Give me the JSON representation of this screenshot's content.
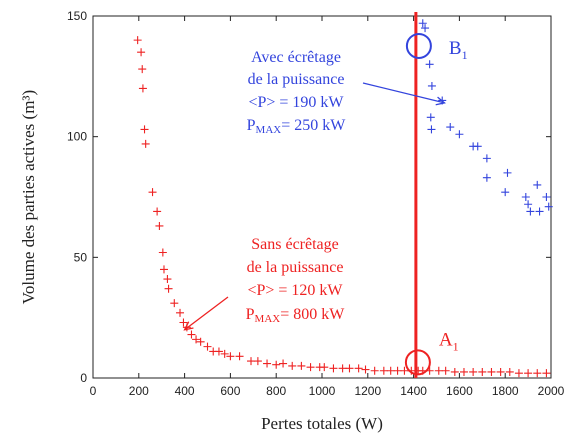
{
  "chart_data": {
    "type": "scatter",
    "xlabel": "Pertes totales (W)",
    "ylabel": "Volume des parties actives (m³)",
    "xlim": [
      0,
      2000
    ],
    "ylim": [
      0,
      150
    ],
    "x_ticks": [
      "0",
      "200",
      "400",
      "600",
      "800",
      "1000",
      "1200",
      "1400",
      "1600",
      "1800",
      "2000"
    ],
    "y_ticks": [
      "0",
      "50",
      "100",
      "150"
    ],
    "colors": {
      "red": "#ee2222",
      "blue": "#3344dd"
    },
    "marker": "+",
    "series": [
      {
        "color": "red",
        "points": [
          [
            195,
            140
          ],
          [
            210,
            135
          ],
          [
            215,
            128
          ],
          [
            218,
            120
          ],
          [
            225,
            103
          ],
          [
            230,
            97
          ],
          [
            260,
            77
          ],
          [
            280,
            69
          ],
          [
            290,
            63
          ],
          [
            305,
            52
          ],
          [
            310,
            45
          ],
          [
            325,
            41
          ],
          [
            330,
            37
          ],
          [
            355,
            31
          ],
          [
            380,
            27
          ],
          [
            395,
            23
          ],
          [
            410,
            21
          ],
          [
            430,
            18
          ],
          [
            450,
            16
          ],
          [
            470,
            15
          ],
          [
            500,
            13
          ],
          [
            525,
            11
          ],
          [
            550,
            11
          ],
          [
            575,
            10
          ],
          [
            600,
            9
          ],
          [
            640,
            9
          ],
          [
            690,
            7
          ],
          [
            720,
            7
          ],
          [
            760,
            6
          ],
          [
            800,
            5.5
          ],
          [
            830,
            6
          ],
          [
            870,
            5
          ],
          [
            910,
            5
          ],
          [
            950,
            4.5
          ],
          [
            990,
            4.5
          ],
          [
            1010,
            4.5
          ],
          [
            1050,
            4
          ],
          [
            1090,
            4
          ],
          [
            1120,
            4
          ],
          [
            1160,
            4
          ],
          [
            1190,
            3.5
          ],
          [
            1230,
            3
          ],
          [
            1270,
            3
          ],
          [
            1300,
            3
          ],
          [
            1330,
            3
          ],
          [
            1360,
            3
          ],
          [
            1390,
            3
          ],
          [
            1420,
            3
          ],
          [
            1440,
            3
          ],
          [
            1470,
            3
          ],
          [
            1510,
            3
          ],
          [
            1540,
            3
          ],
          [
            1580,
            2.5
          ],
          [
            1620,
            2.5
          ],
          [
            1660,
            2.5
          ],
          [
            1700,
            2.5
          ],
          [
            1740,
            2.5
          ],
          [
            1780,
            2.5
          ],
          [
            1820,
            2.5
          ],
          [
            1860,
            2
          ],
          [
            1900,
            2
          ],
          [
            1940,
            2
          ],
          [
            1980,
            2
          ]
        ]
      },
      {
        "color": "blue",
        "points": [
          [
            1440,
            147
          ],
          [
            1450,
            145
          ],
          [
            1470,
            130
          ],
          [
            1480,
            121
          ],
          [
            1475,
            108
          ],
          [
            1478,
            103
          ],
          [
            1525,
            115
          ],
          [
            1560,
            104
          ],
          [
            1600,
            101
          ],
          [
            1660,
            96
          ],
          [
            1680,
            96
          ],
          [
            1720,
            91
          ],
          [
            1720,
            83
          ],
          [
            1800,
            77
          ],
          [
            1810,
            85
          ],
          [
            1890,
            75
          ],
          [
            1900,
            72
          ],
          [
            1910,
            69
          ],
          [
            1940,
            80
          ],
          [
            1950,
            69
          ],
          [
            1980,
            75
          ],
          [
            1990,
            71
          ]
        ]
      }
    ],
    "vertical_line": {
      "x": 1410,
      "y_from": 0,
      "y_to": 150,
      "color": "red"
    },
    "markers": [
      {
        "label": "A",
        "subscript": "1",
        "x": 1410,
        "y": 4,
        "color": "red"
      },
      {
        "label": "B",
        "subscript": "1",
        "x": 1410,
        "y": 138,
        "color": "blue"
      }
    ],
    "annotations": {
      "blue": {
        "line1": "Avec écrêtage",
        "line2": "de la puissance",
        "line3": "<P> = 190 kW",
        "line4_main": "P",
        "line4_sub": "MAX",
        "line4_rest": "= 250 kW",
        "arrow_to": [
          1535,
          114
        ]
      },
      "red": {
        "line1": "Sans écrêtage",
        "line2": "de la puissance",
        "line3": "<P> = 120 kW",
        "line4_main": "P",
        "line4_sub": "MAX",
        "line4_rest": "= 800 kW",
        "arrow_to": [
          400,
          20
        ]
      }
    }
  }
}
